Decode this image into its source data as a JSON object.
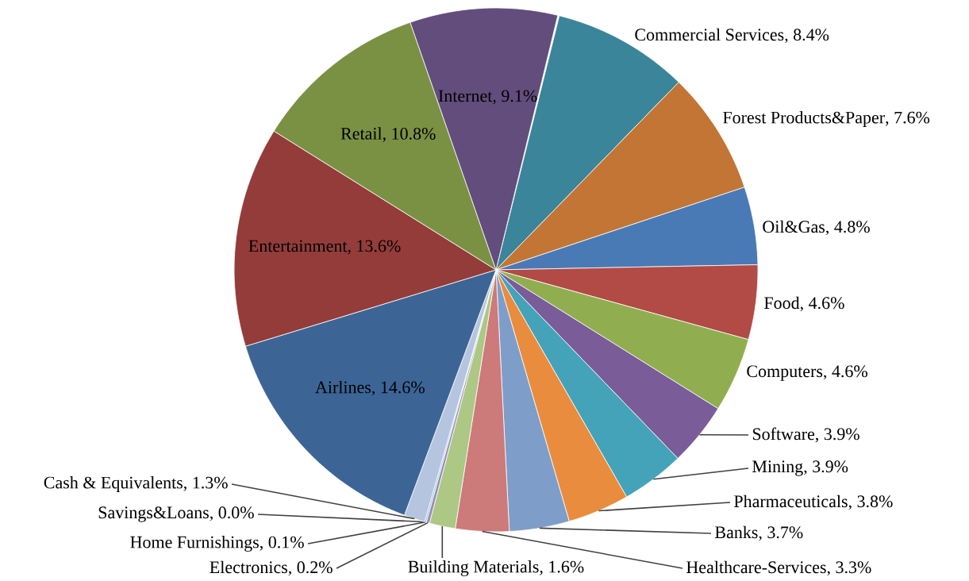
{
  "chart_data": {
    "type": "pie",
    "categories": [
      "Commercial Services",
      "Forest Products&Paper",
      "Oil&Gas",
      "Food",
      "Computers",
      "Software",
      "Mining",
      "Pharmaceuticals",
      "Banks",
      "Healthcare-Services",
      "Building Materials",
      "Electronics",
      "Home Furnishings",
      "Savings&Loans",
      "Cash & Equivalents",
      "Airlines",
      "Entertainment",
      "Retail",
      "Internet"
    ],
    "values": [
      8.4,
      7.6,
      4.8,
      4.6,
      4.6,
      3.9,
      3.9,
      3.8,
      3.7,
      3.3,
      1.6,
      0.2,
      0.1,
      0.0,
      1.3,
      14.6,
      13.6,
      10.8,
      9.1
    ],
    "value_labels": [
      ", 8.4%",
      ", 7.6%",
      ", 4.8%",
      ", 4.6%",
      ", 4.6%",
      ", 3.9%",
      ", 3.9%",
      ", 3.8%",
      ", 3.7%",
      ", 3.3%",
      ", 1.6%",
      ", 0.2%",
      ", 0.1%",
      ", 0.0%",
      ", 1.3%",
      ", 14.6%",
      ", 13.6%",
      ", 10.8%",
      ", 9.1%"
    ],
    "colors": [
      "#3a8599",
      "#c27535",
      "#4a7ab5",
      "#b24a45",
      "#90ae50",
      "#7a5c98",
      "#45a3b9",
      "#e98c3e",
      "#7f9dc9",
      "#cc7a7a",
      "#adc784",
      "#9e8bb8",
      "#80c6d5",
      "#f5b07f",
      "#b6c5df",
      "#3c6596",
      "#943c3a",
      "#7a9144",
      "#624d7c"
    ]
  }
}
